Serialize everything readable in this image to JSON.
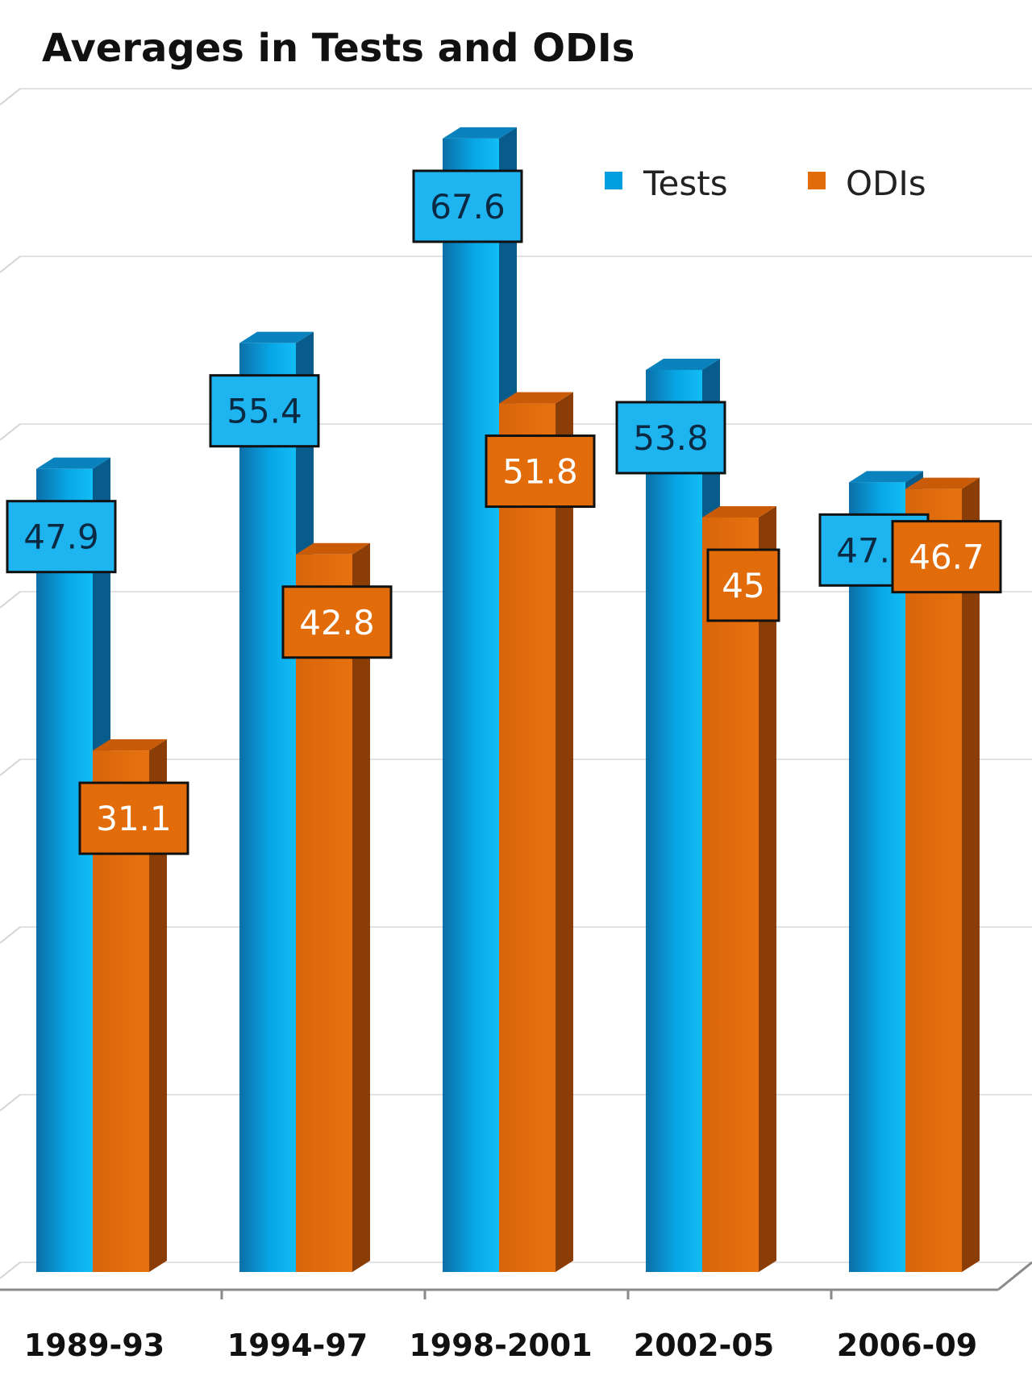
{
  "chart_data": {
    "type": "bar",
    "title": "Averages in Tests and ODIs",
    "xlabel": "",
    "ylabel": "",
    "categories": [
      "1989-93",
      "1994-97",
      "1998-2001",
      "2002-05",
      "2006-09"
    ],
    "series": [
      {
        "name": "Tests",
        "values": [
          47.9,
          55.4,
          67.6,
          53.8,
          47.1
        ],
        "color": "#00a0e0",
        "label_bg": "#1eb4f0",
        "label_text": "#0a2a44"
      },
      {
        "name": "ODIs",
        "values": [
          31.1,
          42.8,
          51.8,
          45,
          46.7
        ],
        "color": "#e36c0a",
        "label_bg": "#e36c0a",
        "label_text": "#ffffff"
      }
    ],
    "value_labels": [
      [
        "47.9",
        "55.4",
        "67.6",
        "53.8",
        "47.1"
      ],
      [
        "31.1",
        "42.8",
        "51.8",
        "45",
        "46.7"
      ]
    ],
    "ylim": [
      0,
      70
    ],
    "grid": true,
    "legend": "top-right",
    "style": "3d-column"
  }
}
